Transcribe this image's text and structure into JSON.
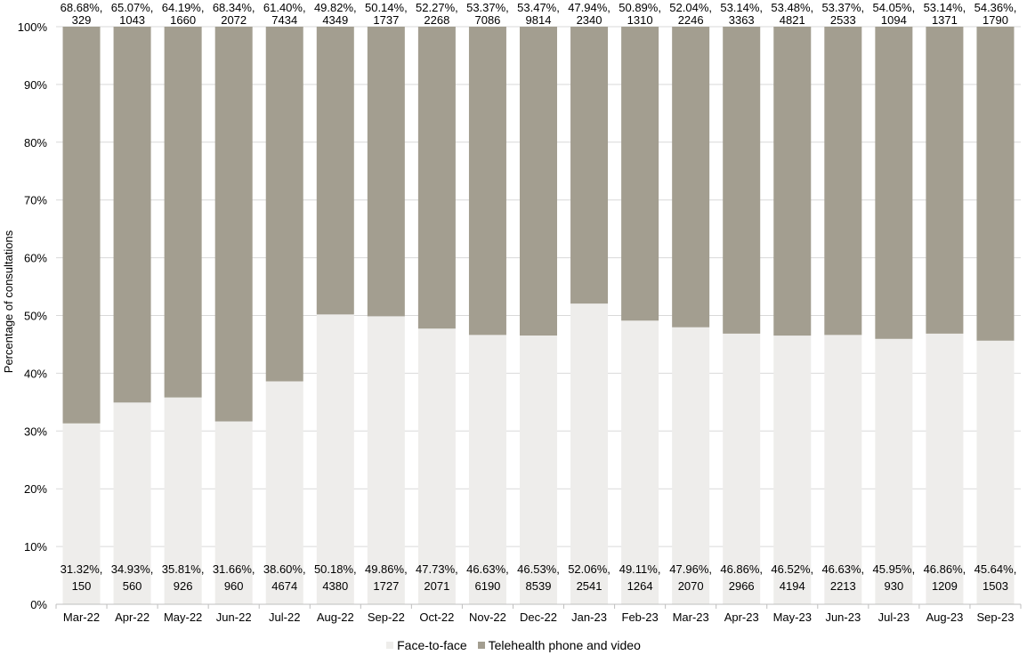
{
  "chart_data": {
    "type": "bar",
    "stacked": "percent",
    "ylabel": "Percentage of consultations",
    "ylim": [
      0,
      100
    ],
    "yticks": [
      "0%",
      "10%",
      "20%",
      "30%",
      "40%",
      "50%",
      "60%",
      "70%",
      "80%",
      "90%",
      "100%"
    ],
    "grid": true,
    "legend_position": "bottom",
    "categories": [
      "Mar-22",
      "Apr-22",
      "May-22",
      "Jun-22",
      "Jul-22",
      "Aug-22",
      "Sep-22",
      "Oct-22",
      "Nov-22",
      "Dec-22",
      "Jan-23",
      "Feb-23",
      "Mar-23",
      "Apr-23",
      "May-23",
      "Jun-23",
      "Jul-23",
      "Aug-23",
      "Sep-23"
    ],
    "series": [
      {
        "name": "Face-to-face",
        "color": "#eeedeb",
        "values": [
          31.32,
          34.93,
          35.81,
          31.66,
          38.6,
          50.18,
          49.86,
          47.73,
          46.63,
          46.53,
          52.06,
          49.11,
          47.96,
          46.86,
          46.52,
          46.63,
          45.95,
          46.86,
          45.64
        ],
        "labels_pct": [
          "31.32%,",
          "34.93%,",
          "35.81%,",
          "31.66%,",
          "38.60%,",
          "50.18%,",
          "49.86%,",
          "47.73%,",
          "46.63%,",
          "46.53%,",
          "52.06%,",
          "49.11%,",
          "47.96%,",
          "46.86%,",
          "46.52%,",
          "46.63%,",
          "45.95%,",
          "46.86%,",
          "45.64%,"
        ],
        "labels_count": [
          "150",
          "560",
          "926",
          "960",
          "4674",
          "4380",
          "1727",
          "2071",
          "6190",
          "8539",
          "2541",
          "1264",
          "2070",
          "2966",
          "4194",
          "2213",
          "930",
          "1209",
          "1503"
        ]
      },
      {
        "name": "Telehealth phone and video",
        "color": "#a39e90",
        "values": [
          68.68,
          65.07,
          64.19,
          68.34,
          61.4,
          49.82,
          50.14,
          52.27,
          53.37,
          53.47,
          47.94,
          50.89,
          52.04,
          53.14,
          53.48,
          53.37,
          54.05,
          53.14,
          54.36
        ],
        "labels_pct": [
          "68.68%,",
          "65.07%,",
          "64.19%,",
          "68.34%,",
          "61.40%,",
          "49.82%,",
          "50.14%,",
          "52.27%,",
          "53.37%,",
          "53.47%,",
          "47.94%,",
          "50.89%,",
          "52.04%,",
          "53.14%,",
          "53.48%,",
          "53.37%,",
          "54.05%,",
          "53.14%,",
          "54.36%,"
        ],
        "labels_count": [
          "329",
          "1043",
          "1660",
          "2072",
          "7434",
          "4349",
          "1737",
          "2268",
          "7086",
          "9814",
          "2340",
          "1310",
          "2246",
          "3363",
          "4821",
          "2533",
          "1094",
          "1371",
          "1790"
        ]
      }
    ]
  }
}
